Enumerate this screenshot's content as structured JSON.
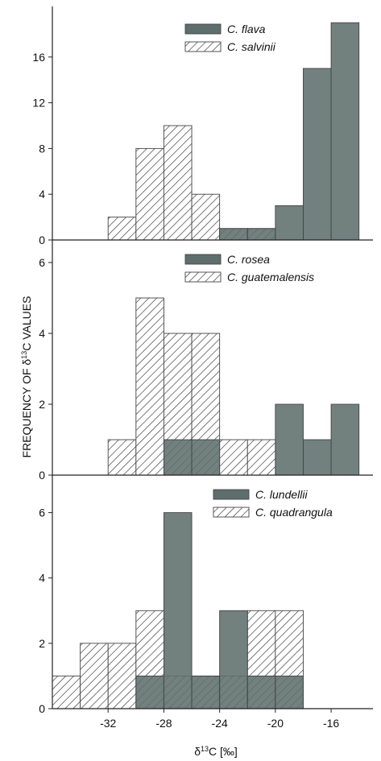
{
  "ylabel": "FREQUENCY OF δ13C VALUES",
  "xlabel": "δ13C [‰]",
  "colors": {
    "solid": "#5e6e6c",
    "hatch_stroke": "#333333",
    "axis": "#222222",
    "background": "#ffffff"
  },
  "chart_data": [
    {
      "type": "bar",
      "stacking": "overlap",
      "bin_width": 2,
      "xlim": [
        -36,
        -13
      ],
      "ylim": [
        0,
        20
      ],
      "yticks": [
        0,
        4,
        8,
        12,
        16
      ],
      "legend_position": "top-center",
      "series": [
        {
          "name": "C. flava",
          "fill": "solid",
          "bins": [
            {
              "x0": -24,
              "count": 1
            },
            {
              "x0": -22,
              "count": 1
            },
            {
              "x0": -20,
              "count": 3
            },
            {
              "x0": -18,
              "count": 15
            },
            {
              "x0": -16,
              "count": 19
            }
          ]
        },
        {
          "name": "C. salvinii",
          "fill": "hatched",
          "bins": [
            {
              "x0": -32,
              "count": 2
            },
            {
              "x0": -30,
              "count": 8
            },
            {
              "x0": -28,
              "count": 10
            },
            {
              "x0": -26,
              "count": 4
            },
            {
              "x0": -24,
              "count": 1
            },
            {
              "x0": -22,
              "count": 1
            }
          ]
        }
      ]
    },
    {
      "type": "bar",
      "stacking": "overlap",
      "bin_width": 2,
      "xlim": [
        -36,
        -13
      ],
      "ylim": [
        0,
        6.5
      ],
      "yticks": [
        0,
        2,
        4,
        6
      ],
      "legend_position": "top-center",
      "series": [
        {
          "name": "C. rosea",
          "fill": "solid",
          "bins": [
            {
              "x0": -28,
              "count": 1
            },
            {
              "x0": -26,
              "count": 1
            },
            {
              "x0": -20,
              "count": 2
            },
            {
              "x0": -18,
              "count": 1
            },
            {
              "x0": -16,
              "count": 2
            }
          ]
        },
        {
          "name": "C. guatemalensis",
          "fill": "hatched",
          "bins": [
            {
              "x0": -32,
              "count": 1
            },
            {
              "x0": -30,
              "count": 5
            },
            {
              "x0": -28,
              "count": 4
            },
            {
              "x0": -26,
              "count": 4
            },
            {
              "x0": -24,
              "count": 1
            },
            {
              "x0": -22,
              "count": 1
            }
          ]
        }
      ]
    },
    {
      "type": "bar",
      "stacking": "overlap",
      "bin_width": 2,
      "xlim": [
        -36,
        -13
      ],
      "ylim": [
        0,
        7
      ],
      "yticks": [
        0,
        2,
        4,
        6
      ],
      "xticks": [
        -32,
        -28,
        -24,
        -20,
        -16
      ],
      "legend_position": "top-center",
      "series": [
        {
          "name": "C. lundellii",
          "fill": "solid",
          "bins": [
            {
              "x0": -30,
              "count": 1
            },
            {
              "x0": -28,
              "count": 6
            },
            {
              "x0": -26,
              "count": 1
            },
            {
              "x0": -24,
              "count": 3
            },
            {
              "x0": -22,
              "count": 1
            },
            {
              "x0": -20,
              "count": 1
            }
          ]
        },
        {
          "name": "C. quadrangula",
          "fill": "hatched",
          "bins": [
            {
              "x0": -36,
              "count": 1
            },
            {
              "x0": -34,
              "count": 2
            },
            {
              "x0": -32,
              "count": 2
            },
            {
              "x0": -30,
              "count": 3
            },
            {
              "x0": -28,
              "count": 1
            },
            {
              "x0": -26,
              "count": 1
            },
            {
              "x0": -24,
              "count": 1
            },
            {
              "x0": -22,
              "count": 3
            },
            {
              "x0": -20,
              "count": 3
            }
          ]
        }
      ]
    }
  ]
}
